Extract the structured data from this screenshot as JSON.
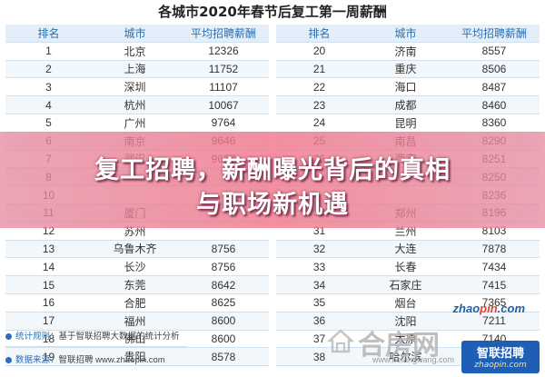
{
  "title": "各城市2020年春节后复工第一周薪酬",
  "columns": [
    "排名",
    "城市",
    "平均招聘薪酬",
    "排名",
    "城市",
    "平均招聘薪酬"
  ],
  "rows": [
    [
      "1",
      "北京",
      "12326",
      "20",
      "济南",
      "8557"
    ],
    [
      "2",
      "上海",
      "11752",
      "21",
      "重庆",
      "8506"
    ],
    [
      "3",
      "深圳",
      "11107",
      "22",
      "海口",
      "8487"
    ],
    [
      "4",
      "杭州",
      "10067",
      "23",
      "成都",
      "8460"
    ],
    [
      "5",
      "广州",
      "9764",
      "24",
      "昆明",
      "8360"
    ],
    [
      "6",
      "南京",
      "9646",
      "25",
      "南昌",
      "8290"
    ],
    [
      "7",
      "武汉",
      "9637",
      "26",
      "西安",
      "8251"
    ],
    [
      "8",
      "",
      "",
      "",
      "",
      "8250"
    ],
    [
      "10",
      "",
      "",
      "",
      "",
      "8236"
    ],
    [
      "11",
      "厦门",
      "",
      "30",
      "郑州",
      "8196"
    ],
    [
      "12",
      "苏州",
      "",
      "31",
      "兰州",
      "8103"
    ],
    [
      "13",
      "乌鲁木齐",
      "8756",
      "32",
      "大连",
      "7878"
    ],
    [
      "14",
      "长沙",
      "8756",
      "33",
      "长春",
      "7434"
    ],
    [
      "15",
      "东莞",
      "8642",
      "34",
      "石家庄",
      "7415"
    ],
    [
      "16",
      "合肥",
      "8625",
      "35",
      "烟台",
      "7365"
    ],
    [
      "17",
      "福州",
      "8600",
      "36",
      "沈阳",
      "7211"
    ],
    [
      "18",
      "佛山",
      "8600",
      "37",
      "太原",
      "7140"
    ],
    [
      "19",
      "贵阳",
      "8578",
      "38",
      "哈尔滨",
      "7012"
    ]
  ],
  "banner": {
    "line1": "复工招聘，薪酬曝光背后的真相",
    "line2": "与职场新机遇"
  },
  "footer": {
    "stat_key": "统计规则：",
    "stat_value": "基于智联招聘大数据的统计分析",
    "source_key": "数据来源：",
    "source_value": "智联招聘 www.zhaopin.com"
  },
  "watermarks": {
    "zhaopin_prefix": "zhao",
    "zhaopin_pin": "pin",
    "zhaopin_suffix": ".com",
    "house_name": "合房网",
    "house_url": "www.hefangwang.com",
    "zl_name": "智联招聘",
    "zl_url": "zhaopin.com"
  }
}
